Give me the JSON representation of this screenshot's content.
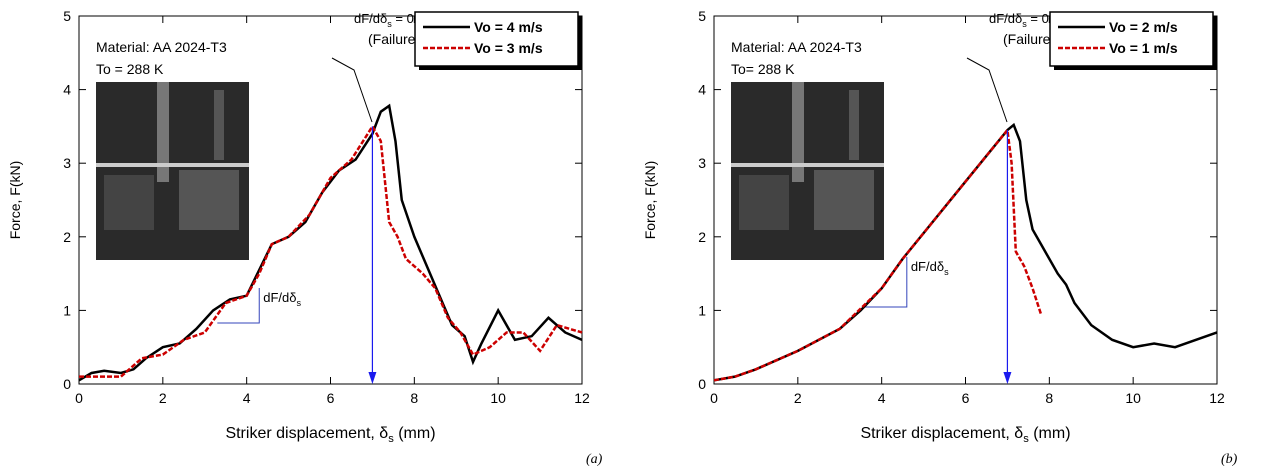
{
  "chart_data": [
    {
      "type": "line",
      "panel_label": "(a)",
      "xlabel_parts": [
        "Striker displacement, δ",
        "s",
        " (mm)"
      ],
      "ylabel": "Force, F(kN)",
      "xlim": [
        0,
        12
      ],
      "ylim": [
        0,
        5
      ],
      "xticks": [
        0,
        2,
        4,
        6,
        8,
        10,
        12
      ],
      "yticks": [
        0,
        1,
        2,
        3,
        4,
        5
      ],
      "material": "Material: AA 2024-T3",
      "temperature": "To = 288 K",
      "failure_parts": [
        "dF/dδ",
        "s",
        " = 0"
      ],
      "failure_note": "(Failure time)",
      "slope_parts": [
        "dF/dδ",
        "s"
      ],
      "failure_x": 7,
      "series": [
        {
          "name": "Vo = 4 m/s",
          "color": "#000000",
          "x": [
            0,
            0.3,
            0.6,
            1,
            1.3,
            1.6,
            2,
            2.4,
            2.8,
            3.2,
            3.6,
            4,
            4.3,
            4.6,
            5,
            5.4,
            5.8,
            6.2,
            6.6,
            7,
            7.2,
            7.4,
            7.55,
            7.7,
            8,
            8.3,
            8.6,
            8.9,
            9.2,
            9.4,
            9.6,
            10,
            10.4,
            10.8,
            11.2,
            11.6,
            12
          ],
          "values": [
            0.05,
            0.15,
            0.18,
            0.15,
            0.2,
            0.35,
            0.5,
            0.55,
            0.75,
            1.0,
            1.15,
            1.2,
            1.55,
            1.9,
            2.0,
            2.2,
            2.6,
            2.9,
            3.05,
            3.4,
            3.7,
            3.78,
            3.3,
            2.5,
            2.0,
            1.6,
            1.2,
            0.8,
            0.65,
            0.3,
            0.55,
            1.0,
            0.6,
            0.65,
            0.9,
            0.7,
            0.6
          ]
        },
        {
          "name": "Vo = 3 m/s",
          "color": "#cc0000",
          "x": [
            0,
            0.5,
            1,
            1.5,
            2,
            2.5,
            3,
            3.5,
            4,
            4.3,
            4.6,
            5,
            5.5,
            6,
            6.5,
            7,
            7.2,
            7.4,
            7.6,
            7.8,
            8.2,
            8.5,
            8.8,
            9.1,
            9.4,
            9.8,
            10.2,
            10.6,
            11,
            11.4,
            12
          ],
          "values": [
            0.1,
            0.1,
            0.1,
            0.35,
            0.4,
            0.6,
            0.7,
            1.1,
            1.2,
            1.5,
            1.9,
            2.0,
            2.3,
            2.8,
            3.05,
            3.5,
            3.3,
            2.2,
            2.0,
            1.7,
            1.5,
            1.3,
            0.9,
            0.7,
            0.4,
            0.5,
            0.7,
            0.7,
            0.45,
            0.8,
            0.7
          ]
        }
      ]
    },
    {
      "type": "line",
      "panel_label": "(b)",
      "xlabel_parts": [
        "Striker displacement, δ",
        "s",
        " (mm)"
      ],
      "ylabel": "Force, F(kN)",
      "xlim": [
        0,
        12
      ],
      "ylim": [
        0,
        5
      ],
      "xticks": [
        0,
        2,
        4,
        6,
        8,
        10,
        12
      ],
      "yticks": [
        0,
        1,
        2,
        3,
        4,
        5
      ],
      "material": "Material: AA 2024-T3",
      "temperature": "To= 288 K",
      "failure_parts": [
        "dF/dδ",
        "s",
        " = 0"
      ],
      "failure_note": "(Failure time)",
      "slope_parts": [
        "dF/dδ",
        "s"
      ],
      "failure_x": 7,
      "series": [
        {
          "name": "Vo = 2 m/s",
          "color": "#000000",
          "x": [
            0,
            0.5,
            1,
            2,
            3,
            3.5,
            4,
            4.5,
            5,
            6,
            6.5,
            7,
            7.15,
            7.3,
            7.45,
            7.6,
            7.8,
            8.2,
            8.4,
            8.6,
            9,
            9.5,
            10,
            10.5,
            11,
            11.5,
            12
          ],
          "values": [
            0.05,
            0.1,
            0.2,
            0.45,
            0.75,
            1.0,
            1.3,
            1.7,
            2.05,
            2.75,
            3.1,
            3.45,
            3.52,
            3.3,
            2.5,
            2.1,
            1.9,
            1.5,
            1.35,
            1.1,
            0.8,
            0.6,
            0.5,
            0.55,
            0.5,
            0.6,
            0.7
          ]
        },
        {
          "name": "Vo = 1 m/s",
          "color": "#cc0000",
          "x": [
            0,
            0.5,
            1,
            2,
            3,
            4,
            4.5,
            5,
            6,
            7,
            7.1,
            7.2,
            7.4,
            7.6,
            7.8
          ],
          "values": [
            0.05,
            0.1,
            0.2,
            0.45,
            0.75,
            1.3,
            1.7,
            2.05,
            2.75,
            3.45,
            3.0,
            1.8,
            1.6,
            1.3,
            0.95
          ]
        }
      ]
    }
  ]
}
